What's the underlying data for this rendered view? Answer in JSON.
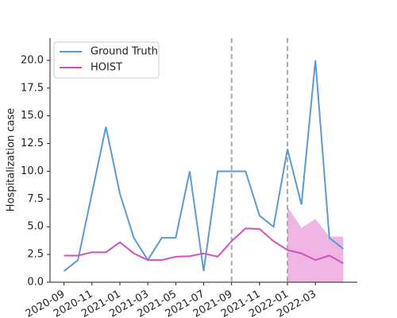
{
  "chart_data": {
    "type": "line",
    "ylabel": "Hospitalization case",
    "x": [
      "2020-09",
      "2020-10",
      "2020-11",
      "2020-12",
      "2021-01",
      "2021-02",
      "2021-03",
      "2021-04",
      "2021-05",
      "2021-06",
      "2021-07",
      "2021-08",
      "2021-09",
      "2021-10",
      "2021-11",
      "2021-12",
      "2022-01",
      "2022-02",
      "2022-03",
      "2022-04",
      "2022-05"
    ],
    "series": [
      {
        "name": "Ground Truth",
        "color": "#5a9bd4",
        "values": [
          1,
          2,
          8,
          14,
          8,
          4,
          2,
          4,
          4,
          10,
          1,
          10,
          10,
          10,
          6,
          5,
          12,
          7,
          20,
          4,
          3
        ]
      },
      {
        "name": "HOIST",
        "color": "#d64fc0",
        "values": [
          2.4,
          2.4,
          2.7,
          2.7,
          3.6,
          2.6,
          2.0,
          2.0,
          2.3,
          2.35,
          2.6,
          2.3,
          3.7,
          4.85,
          4.8,
          3.7,
          2.9,
          2.6,
          2.0,
          2.4,
          1.7
        ]
      }
    ],
    "interval": {
      "color": "#f0b6e3",
      "x": [
        "2022-01",
        "2022-02",
        "2022-03",
        "2022-04",
        "2022-05"
      ],
      "upper": [
        6.8,
        4.9,
        5.7,
        4.1,
        4.1
      ],
      "lower": [
        0,
        0,
        0,
        0,
        0
      ]
    },
    "vlines": [
      "2021-09",
      "2022-01"
    ],
    "xlim": [
      "2020-08",
      "2022-06"
    ],
    "xticks": [
      "2020-09",
      "2020-11",
      "2021-01",
      "2021-03",
      "2021-05",
      "2021-07",
      "2021-09",
      "2021-11",
      "2022-01",
      "2022-03"
    ],
    "ylim": [
      0,
      22
    ],
    "yticks": [
      {
        "value": 0,
        "label": "0.0"
      },
      2.5,
      {
        "value": 5,
        "label": "5.0"
      },
      7.5,
      {
        "value": 10,
        "label": "10.0"
      },
      12.5,
      {
        "value": 15,
        "label": "15.0"
      },
      17.5,
      {
        "value": 20,
        "label": "20.0"
      }
    ],
    "legend": "upper left"
  }
}
